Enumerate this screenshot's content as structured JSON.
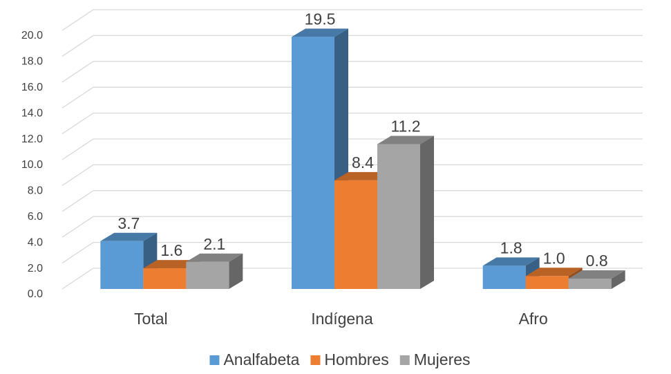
{
  "chart_data": {
    "type": "bar3d",
    "categories": [
      "Total",
      "Indígena",
      "Afro"
    ],
    "series": [
      {
        "name": "Analfabeta",
        "color": "#5b9bd5",
        "values": [
          3.7,
          19.5,
          1.8
        ],
        "value_labels": [
          "3.7",
          "19.5",
          "1.8"
        ]
      },
      {
        "name": "Hombres",
        "color": "#ed7d31",
        "values": [
          1.6,
          8.4,
          1.0
        ],
        "value_labels": [
          "1.6",
          "8.4",
          "1.0"
        ]
      },
      {
        "name": "Mujeres",
        "color": "#a5a5a5",
        "values": [
          2.1,
          11.2,
          0.8
        ],
        "value_labels": [
          "2.1",
          "11.2",
          "0.8"
        ]
      }
    ],
    "ylim": [
      0,
      20
    ],
    "yticks": [
      {
        "value": 0,
        "label": "0.0"
      },
      {
        "value": 2,
        "label": "2.0"
      },
      {
        "value": 4,
        "label": "4.0"
      },
      {
        "value": 6,
        "label": "6.0"
      },
      {
        "value": 8,
        "label": "8.0"
      },
      {
        "value": 10,
        "label": "10.0"
      },
      {
        "value": 12,
        "label": "12.0"
      },
      {
        "value": 14,
        "label": "14.0"
      },
      {
        "value": 16,
        "label": "16.0"
      },
      {
        "value": 18,
        "label": "18.0"
      },
      {
        "value": 20,
        "label": "20.0"
      }
    ],
    "grid": true,
    "legend": "bottom"
  }
}
